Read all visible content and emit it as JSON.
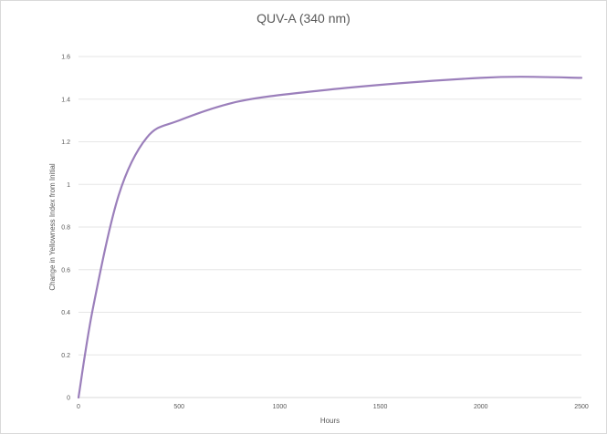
{
  "chart_data": {
    "type": "line",
    "title": "QUV-A (340 nm)",
    "xlabel": "Hours",
    "ylabel": "Change in Yellowness Index from Initial",
    "xlim": [
      0,
      2500
    ],
    "ylim": [
      0,
      1.6
    ],
    "x_ticks": [
      "0",
      "500",
      "1000",
      "1500",
      "2000",
      "2500"
    ],
    "y_ticks": [
      "0",
      "0.2",
      "0.4",
      "0.6",
      "0.8",
      "1",
      "1.2",
      "1.4",
      "1.6"
    ],
    "grid": "horizontal",
    "legend": "none",
    "series": [
      {
        "color": "#9b7fbb",
        "x": [
          0,
          72,
          200,
          340,
          500,
          800,
          1200,
          1600,
          2000,
          2200,
          2500
        ],
        "y": [
          0,
          0.42,
          0.95,
          1.22,
          1.3,
          1.39,
          1.44,
          1.475,
          1.5,
          1.505,
          1.5
        ]
      }
    ]
  }
}
